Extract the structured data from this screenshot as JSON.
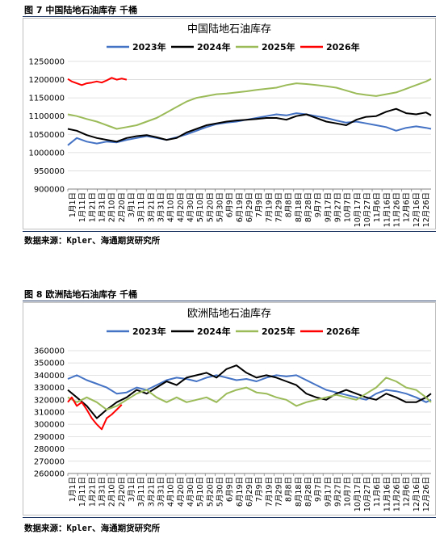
{
  "figures": [
    {
      "heading": "图 7 中国陆地石油库存  千桶",
      "source": "数据来源：Kpler、海通期货研究所"
    },
    {
      "heading": "图 8 欧洲陆地石油库存  千桶",
      "source": "数据来源：Kpler、海通期货研究所"
    }
  ],
  "chart_data": [
    {
      "type": "line",
      "title": "中国陆地石油库存",
      "xlabel": "",
      "ylabel": "",
      "ylim": [
        900000,
        1250000
      ],
      "yticks": [
        900000,
        950000,
        1000000,
        1050000,
        1100000,
        1150000,
        1200000,
        1250000
      ],
      "xticks": [
        "1月1日",
        "1月11日",
        "1月21日",
        "1月31日",
        "2月10日",
        "2月20日",
        "3月1日",
        "3月11日",
        "3月21日",
        "3月31日",
        "4月10日",
        "4月20日",
        "4月30日",
        "5月10日",
        "5月20日",
        "5月30日",
        "6月9日",
        "6月19日",
        "6月29日",
        "7月9日",
        "7月19日",
        "7月29日",
        "8月8日",
        "8月18日",
        "8月28日",
        "9月7日",
        "9月17日",
        "9月27日",
        "10月7日",
        "10月17日",
        "10月27日",
        "11月6日",
        "11月16日",
        "11月26日",
        "12月6日",
        "12月16日",
        "12月26日"
      ],
      "grid": true,
      "legend": "top",
      "series": [
        {
          "name": "2023年",
          "color": "#4472c4",
          "x": [
            1,
            10,
            20,
            30,
            40,
            50,
            60,
            70,
            80,
            90,
            100,
            110,
            120,
            130,
            140,
            150,
            160,
            170,
            180,
            190,
            200,
            210,
            220,
            230,
            240,
            250,
            260,
            270,
            280,
            290,
            300,
            310,
            320,
            330,
            340,
            350,
            360,
            365
          ],
          "values": [
            1020000,
            1040000,
            1030000,
            1025000,
            1030000,
            1028000,
            1035000,
            1040000,
            1045000,
            1040000,
            1035000,
            1042000,
            1050000,
            1060000,
            1070000,
            1078000,
            1082000,
            1085000,
            1090000,
            1095000,
            1100000,
            1105000,
            1102000,
            1108000,
            1105000,
            1100000,
            1095000,
            1088000,
            1082000,
            1085000,
            1080000,
            1075000,
            1070000,
            1060000,
            1068000,
            1072000,
            1068000,
            1065000
          ]
        },
        {
          "name": "2024年",
          "color": "#000000",
          "x": [
            1,
            10,
            20,
            30,
            40,
            50,
            60,
            70,
            80,
            90,
            100,
            110,
            120,
            130,
            140,
            150,
            160,
            170,
            180,
            190,
            200,
            210,
            220,
            230,
            240,
            250,
            260,
            270,
            280,
            290,
            300,
            310,
            320,
            330,
            340,
            350,
            360,
            365
          ],
          "values": [
            1065000,
            1060000,
            1048000,
            1040000,
            1035000,
            1030000,
            1040000,
            1045000,
            1048000,
            1042000,
            1035000,
            1040000,
            1055000,
            1065000,
            1075000,
            1080000,
            1085000,
            1088000,
            1090000,
            1092000,
            1095000,
            1095000,
            1090000,
            1100000,
            1105000,
            1095000,
            1085000,
            1080000,
            1075000,
            1090000,
            1098000,
            1100000,
            1112000,
            1120000,
            1108000,
            1105000,
            1110000,
            1102000
          ]
        },
        {
          "name": "2025年",
          "color": "#9bbb59",
          "x": [
            1,
            10,
            20,
            30,
            40,
            50,
            60,
            70,
            80,
            90,
            100,
            110,
            120,
            130,
            140,
            150,
            160,
            170,
            180,
            190,
            200,
            210,
            220,
            230,
            240,
            250,
            260,
            270,
            280,
            290,
            300,
            310,
            320,
            330,
            340,
            350,
            360,
            365
          ],
          "values": [
            1105000,
            1100000,
            1092000,
            1085000,
            1075000,
            1065000,
            1070000,
            1075000,
            1085000,
            1095000,
            1110000,
            1125000,
            1140000,
            1150000,
            1155000,
            1160000,
            1162000,
            1165000,
            1168000,
            1172000,
            1175000,
            1178000,
            1185000,
            1190000,
            1188000,
            1185000,
            1182000,
            1178000,
            1170000,
            1162000,
            1158000,
            1155000,
            1160000,
            1165000,
            1175000,
            1185000,
            1195000,
            1202000
          ]
        },
        {
          "name": "2026年",
          "color": "#ff0000",
          "x": [
            1,
            5,
            10,
            15,
            20,
            25,
            30,
            35,
            40,
            45,
            50,
            55,
            60
          ],
          "values": [
            1202000,
            1195000,
            1190000,
            1185000,
            1190000,
            1192000,
            1195000,
            1192000,
            1198000,
            1205000,
            1200000,
            1203000,
            1200000
          ]
        }
      ]
    },
    {
      "type": "line",
      "title": "欧洲陆地石油库存",
      "xlabel": "",
      "ylabel": "",
      "ylim": [
        260000,
        360000
      ],
      "yticks": [
        260000,
        270000,
        280000,
        290000,
        300000,
        310000,
        320000,
        330000,
        340000,
        350000,
        360000
      ],
      "xticks": [
        "1月1日",
        "1月11日",
        "1月21日",
        "1月31日",
        "2月10日",
        "2月20日",
        "3月1日",
        "3月11日",
        "3月21日",
        "3月31日",
        "4月10日",
        "4月20日",
        "4月30日",
        "5月10日",
        "5月20日",
        "5月30日",
        "6月9日",
        "6月19日",
        "6月29日",
        "7月9日",
        "7月19日",
        "7月29日",
        "8月8日",
        "8月18日",
        "8月28日",
        "9月7日",
        "9月17日",
        "9月27日",
        "10月7日",
        "10月17日",
        "10月27日",
        "11月6日",
        "11月16日",
        "11月26日",
        "12月6日",
        "12月16日",
        "12月26日"
      ],
      "grid": true,
      "legend": "top",
      "series": [
        {
          "name": "2023年",
          "color": "#4472c4",
          "x": [
            1,
            10,
            20,
            30,
            40,
            50,
            60,
            70,
            80,
            90,
            100,
            110,
            120,
            130,
            140,
            150,
            160,
            170,
            180,
            190,
            200,
            210,
            220,
            230,
            240,
            250,
            260,
            270,
            280,
            290,
            300,
            310,
            320,
            330,
            340,
            350,
            360,
            365
          ],
          "values": [
            337000,
            340000,
            336000,
            333000,
            330000,
            325000,
            326000,
            330000,
            328000,
            332000,
            336000,
            338000,
            337000,
            335000,
            338000,
            340000,
            338000,
            336000,
            337000,
            335000,
            338000,
            340000,
            339000,
            340000,
            336000,
            332000,
            328000,
            326000,
            324000,
            322000,
            320000,
            325000,
            328000,
            327000,
            325000,
            322000,
            318000,
            320000
          ]
        },
        {
          "name": "2024年",
          "color": "#000000",
          "x": [
            1,
            10,
            20,
            30,
            40,
            50,
            60,
            70,
            80,
            90,
            100,
            110,
            120,
            130,
            140,
            150,
            160,
            170,
            180,
            190,
            200,
            210,
            220,
            230,
            240,
            250,
            260,
            270,
            280,
            290,
            300,
            310,
            320,
            330,
            340,
            350,
            360,
            365
          ],
          "values": [
            328000,
            322000,
            315000,
            305000,
            312000,
            318000,
            322000,
            328000,
            325000,
            330000,
            335000,
            332000,
            338000,
            340000,
            342000,
            338000,
            345000,
            348000,
            342000,
            338000,
            340000,
            338000,
            335000,
            332000,
            325000,
            322000,
            320000,
            325000,
            328000,
            325000,
            322000,
            320000,
            325000,
            322000,
            318000,
            318000,
            322000,
            325000
          ]
        },
        {
          "name": "2025年",
          "color": "#9bbb59",
          "x": [
            1,
            10,
            20,
            30,
            40,
            50,
            60,
            70,
            80,
            90,
            100,
            110,
            120,
            130,
            140,
            150,
            160,
            170,
            180,
            190,
            200,
            210,
            220,
            230,
            240,
            250,
            260,
            270,
            280,
            290,
            300,
            310,
            320,
            330,
            340,
            350,
            360,
            365
          ],
          "values": [
            322000,
            318000,
            322000,
            318000,
            312000,
            315000,
            320000,
            325000,
            328000,
            322000,
            318000,
            322000,
            318000,
            320000,
            322000,
            318000,
            325000,
            328000,
            330000,
            326000,
            325000,
            322000,
            320000,
            315000,
            318000,
            320000,
            322000,
            324000,
            322000,
            320000,
            325000,
            330000,
            338000,
            335000,
            330000,
            328000,
            322000,
            318000
          ]
        },
        {
          "name": "2026年",
          "color": "#ff0000",
          "x": [
            1,
            5,
            10,
            15,
            20,
            25,
            30,
            35,
            40,
            45,
            50,
            55
          ],
          "values": [
            318000,
            322000,
            315000,
            318000,
            312000,
            305000,
            300000,
            296000,
            305000,
            308000,
            312000,
            316000
          ]
        }
      ]
    }
  ]
}
